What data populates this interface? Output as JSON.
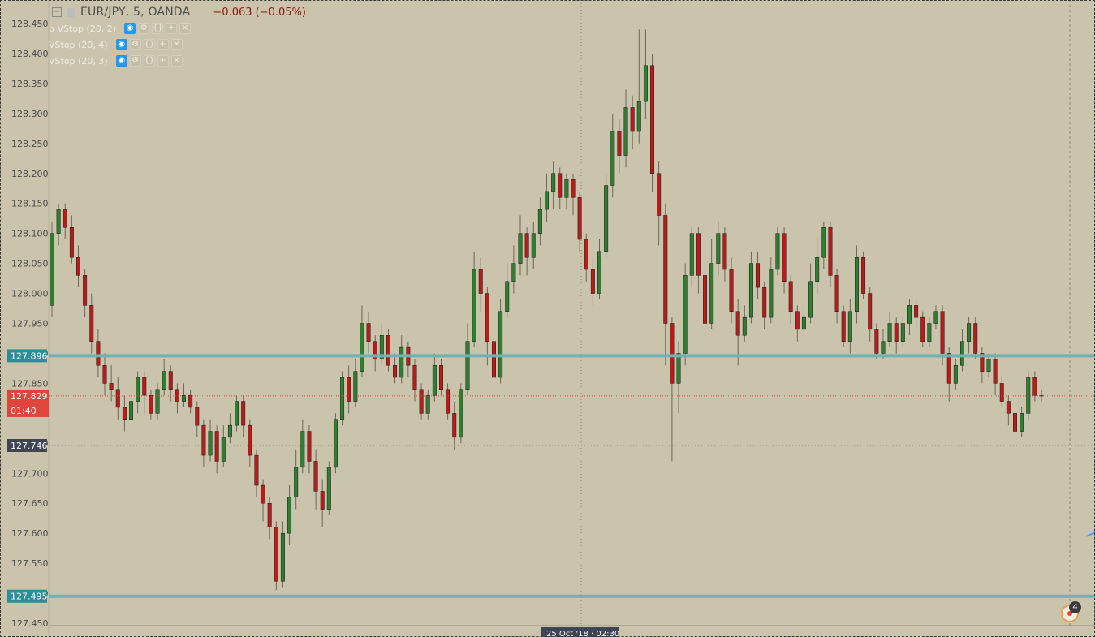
{
  "header": {
    "symbol": "EUR/JPY, 5, OANDA",
    "change": "−0.063 (−0.05%)"
  },
  "indicators": [
    {
      "label": "b VStop (20, 2)"
    },
    {
      "label": "VStop (20, 4)"
    },
    {
      "label": "VStop (20, 3)"
    }
  ],
  "icons": {
    "collapse": "minus-square-icon",
    "eye": "eye-icon",
    "settings": "gear-icon",
    "source": "code-icon",
    "more": "plus-icon",
    "close": "close-icon",
    "alerts": "alert-badge-icon"
  },
  "alerts": {
    "count": "4"
  },
  "colors": {
    "background": "#cbc4ad",
    "up_candle": "#2e7d32",
    "down_candle": "#b71c1c",
    "level_line": "#6fb2b4",
    "level_label": "#2a8d97",
    "last_price": "#e0453b",
    "crosshair_label": "#3f4553"
  },
  "chart_data": {
    "type": "candlestick",
    "symbol": "EUR/JPY",
    "timeframe": "5",
    "source": "OANDA",
    "y_axis": {
      "ticks": [
        "128.450",
        "128.400",
        "128.350",
        "128.300",
        "128.250",
        "128.200",
        "128.150",
        "128.100",
        "128.050",
        "128.000",
        "127.950",
        "127.900",
        "127.850",
        "127.800",
        "127.750",
        "127.700",
        "127.650",
        "127.600",
        "127.550",
        "127.500",
        "127.450"
      ],
      "range": [
        127.445,
        128.465
      ]
    },
    "horizontal_levels": [
      {
        "value": 127.896,
        "label": "127.896"
      },
      {
        "value": 127.495,
        "label": "127.495"
      }
    ],
    "last_price": {
      "value": 127.829,
      "label": "127.829",
      "countdown": "01:40"
    },
    "crosshair": {
      "price_label": "127.746",
      "time_label": "25 Oct '18 · 02:30"
    },
    "candles": [
      [
        127.98,
        128.1,
        128.12,
        127.96
      ],
      [
        128.1,
        128.14,
        128.15,
        128.08
      ],
      [
        128.14,
        128.11,
        128.15,
        128.09
      ],
      [
        128.11,
        128.06,
        128.13,
        128.05
      ],
      [
        128.06,
        128.03,
        128.08,
        128.01
      ],
      [
        128.03,
        127.98,
        128.04,
        127.96
      ],
      [
        127.98,
        127.92,
        128.0,
        127.9
      ],
      [
        127.92,
        127.88,
        127.94,
        127.86
      ],
      [
        127.88,
        127.85,
        127.9,
        127.83
      ],
      [
        127.85,
        127.84,
        127.88,
        127.82
      ],
      [
        127.84,
        127.81,
        127.86,
        127.79
      ],
      [
        127.81,
        127.79,
        127.83,
        127.77
      ],
      [
        127.79,
        127.82,
        127.85,
        127.78
      ],
      [
        127.82,
        127.86,
        127.87,
        127.8
      ],
      [
        127.86,
        127.83,
        127.87,
        127.8
      ],
      [
        127.83,
        127.8,
        127.84,
        127.79
      ],
      [
        127.8,
        127.84,
        127.85,
        127.79
      ],
      [
        127.84,
        127.87,
        127.89,
        127.83
      ],
      [
        127.87,
        127.84,
        127.88,
        127.82
      ],
      [
        127.84,
        127.82,
        127.85,
        127.8
      ],
      [
        127.82,
        127.83,
        127.85,
        127.81
      ],
      [
        127.83,
        127.81,
        127.84,
        127.8
      ],
      [
        127.81,
        127.78,
        127.82,
        127.76
      ],
      [
        127.78,
        127.73,
        127.79,
        127.71
      ],
      [
        127.73,
        127.77,
        127.79,
        127.72
      ],
      [
        127.77,
        127.72,
        127.78,
        127.7
      ],
      [
        127.72,
        127.76,
        127.78,
        127.71
      ],
      [
        127.76,
        127.78,
        127.8,
        127.75
      ],
      [
        127.78,
        127.82,
        127.83,
        127.77
      ],
      [
        127.82,
        127.78,
        127.83,
        127.76
      ],
      [
        127.78,
        127.73,
        127.79,
        127.71
      ],
      [
        127.73,
        127.68,
        127.74,
        127.66
      ],
      [
        127.68,
        127.65,
        127.69,
        127.62
      ],
      [
        127.65,
        127.61,
        127.66,
        127.59
      ],
      [
        127.61,
        127.52,
        127.62,
        127.505
      ],
      [
        127.52,
        127.6,
        127.62,
        127.51
      ],
      [
        127.6,
        127.66,
        127.68,
        127.58
      ],
      [
        127.66,
        127.71,
        127.74,
        127.64
      ],
      [
        127.71,
        127.77,
        127.79,
        127.7
      ],
      [
        127.77,
        127.72,
        127.78,
        127.7
      ],
      [
        127.72,
        127.67,
        127.74,
        127.64
      ],
      [
        127.67,
        127.64,
        127.69,
        127.61
      ],
      [
        127.64,
        127.71,
        127.72,
        127.63
      ],
      [
        127.71,
        127.79,
        127.8,
        127.7
      ],
      [
        127.79,
        127.86,
        127.87,
        127.78
      ],
      [
        127.86,
        127.82,
        127.88,
        127.8
      ],
      [
        127.82,
        127.87,
        127.89,
        127.81
      ],
      [
        127.87,
        127.95,
        127.98,
        127.86
      ],
      [
        127.95,
        127.92,
        127.97,
        127.9
      ],
      [
        127.92,
        127.89,
        127.93,
        127.87
      ],
      [
        127.89,
        127.93,
        127.95,
        127.88
      ],
      [
        127.93,
        127.88,
        127.94,
        127.87
      ],
      [
        127.88,
        127.86,
        127.9,
        127.85
      ],
      [
        127.86,
        127.91,
        127.93,
        127.85
      ],
      [
        127.91,
        127.88,
        127.92,
        127.86
      ],
      [
        127.88,
        127.84,
        127.89,
        127.82
      ],
      [
        127.84,
        127.8,
        127.85,
        127.79
      ],
      [
        127.8,
        127.83,
        127.84,
        127.79
      ],
      [
        127.83,
        127.88,
        127.9,
        127.82
      ],
      [
        127.88,
        127.84,
        127.89,
        127.83
      ],
      [
        127.84,
        127.8,
        127.85,
        127.79
      ],
      [
        127.8,
        127.76,
        127.82,
        127.74
      ],
      [
        127.76,
        127.84,
        127.85,
        127.75
      ],
      [
        127.84,
        127.92,
        127.95,
        127.83
      ],
      [
        127.92,
        128.04,
        128.07,
        127.91
      ],
      [
        128.04,
        128.0,
        128.06,
        127.97
      ],
      [
        128.0,
        127.92,
        128.01,
        127.88
      ],
      [
        127.92,
        127.86,
        127.93,
        127.82
      ],
      [
        127.86,
        127.97,
        127.99,
        127.85
      ],
      [
        127.97,
        128.02,
        128.05,
        127.96
      ],
      [
        128.02,
        128.05,
        128.08,
        128.0
      ],
      [
        128.05,
        128.1,
        128.13,
        128.03
      ],
      [
        128.1,
        128.06,
        128.11,
        128.03
      ],
      [
        128.06,
        128.1,
        128.12,
        128.04
      ],
      [
        128.1,
        128.14,
        128.16,
        128.08
      ],
      [
        128.14,
        128.17,
        128.2,
        128.12
      ],
      [
        128.17,
        128.2,
        128.22,
        128.14
      ],
      [
        128.2,
        128.16,
        128.21,
        128.14
      ],
      [
        128.16,
        128.19,
        128.2,
        128.14
      ],
      [
        128.19,
        128.16,
        128.2,
        128.13
      ],
      [
        128.16,
        128.09,
        128.17,
        128.07
      ],
      [
        128.09,
        128.04,
        128.1,
        128.02
      ],
      [
        128.04,
        128.0,
        128.06,
        127.98
      ],
      [
        128.0,
        128.07,
        128.09,
        127.99
      ],
      [
        128.07,
        128.18,
        128.2,
        128.06
      ],
      [
        128.18,
        128.27,
        128.3,
        128.16
      ],
      [
        128.27,
        128.23,
        128.29,
        128.2
      ],
      [
        128.23,
        128.31,
        128.34,
        128.21
      ],
      [
        128.31,
        128.27,
        128.33,
        128.24
      ],
      [
        128.27,
        128.32,
        128.44,
        128.25
      ],
      [
        128.32,
        128.38,
        128.44,
        128.29
      ],
      [
        128.38,
        128.2,
        128.4,
        128.17
      ],
      [
        128.2,
        128.13,
        128.22,
        128.08
      ],
      [
        128.13,
        127.95,
        128.15,
        127.88
      ],
      [
        127.95,
        127.85,
        127.96,
        127.72
      ],
      [
        127.85,
        127.9,
        127.92,
        127.8
      ],
      [
        127.9,
        128.03,
        128.05,
        127.88
      ],
      [
        128.03,
        128.1,
        128.11,
        128.01
      ],
      [
        128.1,
        128.03,
        128.11,
        128.0
      ],
      [
        128.03,
        127.95,
        128.05,
        127.93
      ],
      [
        127.95,
        128.05,
        128.09,
        127.94
      ],
      [
        128.05,
        128.1,
        128.12,
        128.03
      ],
      [
        128.1,
        128.04,
        128.11,
        128.02
      ],
      [
        128.04,
        127.97,
        128.06,
        127.95
      ],
      [
        127.97,
        127.93,
        127.99,
        127.88
      ],
      [
        127.93,
        127.96,
        127.98,
        127.92
      ],
      [
        127.96,
        128.05,
        128.07,
        127.95
      ],
      [
        128.05,
        128.01,
        128.07,
        127.99
      ],
      [
        128.01,
        127.96,
        128.02,
        127.94
      ],
      [
        127.96,
        128.04,
        128.06,
        127.95
      ],
      [
        128.04,
        128.1,
        128.11,
        128.03
      ],
      [
        128.1,
        128.02,
        128.11,
        128.0
      ],
      [
        128.02,
        127.97,
        128.03,
        127.95
      ],
      [
        127.97,
        127.94,
        127.98,
        127.92
      ],
      [
        127.94,
        127.96,
        127.98,
        127.93
      ],
      [
        127.96,
        128.02,
        128.05,
        127.95
      ],
      [
        128.02,
        128.06,
        128.09,
        128.0
      ],
      [
        128.06,
        128.11,
        128.12,
        128.04
      ],
      [
        128.11,
        128.03,
        128.12,
        128.01
      ],
      [
        128.03,
        127.97,
        128.04,
        127.95
      ],
      [
        127.97,
        127.92,
        127.98,
        127.91
      ],
      [
        127.92,
        127.97,
        127.99,
        127.9
      ],
      [
        127.97,
        128.06,
        128.08,
        127.95
      ],
      [
        128.06,
        128.0,
        128.07,
        127.99
      ],
      [
        128.0,
        127.94,
        128.01,
        127.92
      ],
      [
        127.94,
        127.9,
        127.95,
        127.89
      ],
      [
        127.9,
        127.92,
        127.94,
        127.89
      ],
      [
        127.92,
        127.95,
        127.97,
        127.91
      ],
      [
        127.95,
        127.92,
        127.96,
        127.9
      ],
      [
        127.92,
        127.95,
        127.96,
        127.91
      ],
      [
        127.95,
        127.98,
        127.99,
        127.93
      ],
      [
        127.98,
        127.96,
        127.99,
        127.94
      ],
      [
        127.96,
        127.92,
        127.97,
        127.91
      ],
      [
        127.92,
        127.95,
        127.96,
        127.91
      ],
      [
        127.95,
        127.97,
        127.98,
        127.94
      ],
      [
        127.97,
        127.9,
        127.98,
        127.88
      ],
      [
        127.9,
        127.85,
        127.91,
        127.82
      ],
      [
        127.85,
        127.88,
        127.89,
        127.84
      ],
      [
        127.88,
        127.92,
        127.94,
        127.87
      ],
      [
        127.92,
        127.95,
        127.96,
        127.9
      ],
      [
        127.95,
        127.9,
        127.96,
        127.89
      ],
      [
        127.9,
        127.87,
        127.91,
        127.85
      ],
      [
        127.87,
        127.89,
        127.9,
        127.86
      ],
      [
        127.89,
        127.85,
        127.9,
        127.83
      ],
      [
        127.85,
        127.82,
        127.86,
        127.81
      ],
      [
        127.82,
        127.8,
        127.83,
        127.78
      ],
      [
        127.8,
        127.77,
        127.81,
        127.76
      ],
      [
        127.77,
        127.8,
        127.81,
        127.76
      ],
      [
        127.8,
        127.86,
        127.87,
        127.79
      ],
      [
        127.86,
        127.83,
        127.87,
        127.82
      ],
      [
        127.83,
        127.83,
        127.84,
        127.82
      ]
    ]
  }
}
